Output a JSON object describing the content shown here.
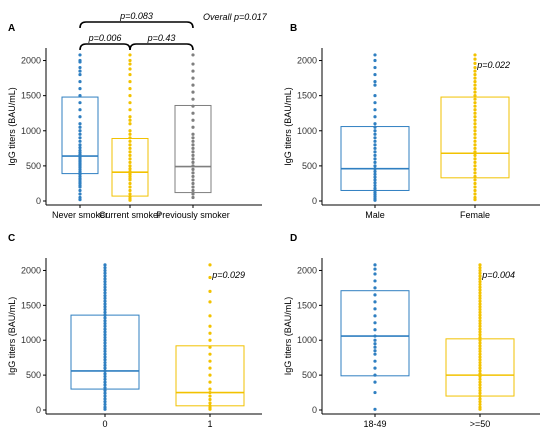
{
  "colors": {
    "blue": "#2f7fc1",
    "yellow": "#f2c200",
    "gray": "#7f7f7f",
    "axis": "#000000"
  },
  "chart_data": [
    {
      "panel": "A",
      "type": "box",
      "ylabel": "IgG titers (BAU/mL)",
      "ylim": [
        0,
        2150
      ],
      "yticks": [
        0,
        500,
        1000,
        1500,
        2000
      ],
      "grid": false,
      "overall_p": "Overall p=0.017",
      "categories": [
        "Never smoker",
        "Current smoker",
        "Previously smoker"
      ],
      "box_colors": [
        "blue",
        "yellow",
        "gray"
      ],
      "boxes": [
        {
          "q1": 390,
          "median": 640,
          "q3": 1480
        },
        {
          "q1": 70,
          "median": 410,
          "q3": 890
        },
        {
          "q1": 120,
          "median": 490,
          "q3": 1360
        }
      ],
      "points": [
        [
          2080,
          2000,
          1980,
          1900,
          1850,
          1800,
          1700,
          1600,
          1500,
          1400,
          1300,
          1200,
          1100,
          1050,
          1000,
          950,
          900,
          850,
          800,
          760,
          720,
          690,
          660,
          640,
          620,
          600,
          580,
          560,
          540,
          520,
          500,
          480,
          450,
          420,
          400,
          380,
          350,
          320,
          300,
          270,
          250,
          220,
          200,
          150,
          100,
          50,
          20
        ],
        [
          2080,
          2000,
          1950,
          1880,
          1800,
          1700,
          1600,
          1500,
          1400,
          1300,
          1200,
          1150,
          1100,
          1000,
          950,
          900,
          850,
          800,
          750,
          700,
          650,
          600,
          550,
          500,
          460,
          420,
          400,
          380,
          350,
          320,
          300,
          250,
          200,
          150,
          100,
          60,
          30,
          10
        ],
        [
          2080,
          1950,
          1850,
          1750,
          1650,
          1550,
          1450,
          1350,
          1250,
          1150,
          1050,
          950,
          900,
          850,
          800,
          750,
          700,
          650,
          600,
          550,
          500,
          450,
          400,
          350,
          300,
          250,
          200,
          150,
          100,
          50
        ]
      ],
      "comparisons": [
        {
          "label": "p=0.006",
          "from": 0,
          "to": 1,
          "level": 1
        },
        {
          "label": "p=0.43",
          "from": 1,
          "to": 2,
          "level": 1
        },
        {
          "label": "p=0.083",
          "from": 0,
          "to": 2,
          "level": 2
        }
      ]
    },
    {
      "panel": "B",
      "type": "box",
      "ylabel": "IgG titers (BAU/mL)",
      "ylim": [
        0,
        2150
      ],
      "yticks": [
        0,
        500,
        1000,
        1500,
        2000
      ],
      "grid": false,
      "p_value": "p=0.022",
      "categories": [
        "Male",
        "Female"
      ],
      "box_colors": [
        "blue",
        "yellow"
      ],
      "boxes": [
        {
          "q1": 150,
          "median": 460,
          "q3": 1060
        },
        {
          "q1": 330,
          "median": 680,
          "q3": 1480
        }
      ],
      "points": [
        [
          2080,
          2000,
          1900,
          1800,
          1700,
          1650,
          1500,
          1400,
          1300,
          1200,
          1100,
          1050,
          1000,
          950,
          900,
          850,
          800,
          750,
          700,
          650,
          600,
          550,
          500,
          460,
          420,
          380,
          340,
          300,
          260,
          220,
          180,
          150,
          120,
          90,
          60,
          30,
          10
        ],
        [
          2080,
          2020,
          1960,
          1900,
          1850,
          1800,
          1750,
          1700,
          1650,
          1600,
          1550,
          1500,
          1450,
          1400,
          1350,
          1300,
          1250,
          1200,
          1150,
          1100,
          1050,
          1000,
          950,
          900,
          850,
          800,
          750,
          700,
          650,
          600,
          550,
          500,
          450,
          400,
          350,
          300,
          250,
          200,
          150,
          100,
          50,
          20
        ]
      ]
    },
    {
      "panel": "C",
      "type": "box",
      "ylabel": "IgG titers (BAU/mL)",
      "ylim": [
        0,
        2150
      ],
      "yticks": [
        0,
        500,
        1000,
        1500,
        2000
      ],
      "grid": false,
      "p_value": "p=0.029",
      "categories": [
        "0",
        "1"
      ],
      "box_colors": [
        "blue",
        "yellow"
      ],
      "boxes": [
        {
          "q1": 300,
          "median": 560,
          "q3": 1360
        },
        {
          "q1": 60,
          "median": 250,
          "q3": 920
        }
      ],
      "points": [
        [
          2080,
          2040,
          2000,
          1960,
          1920,
          1880,
          1840,
          1800,
          1760,
          1720,
          1680,
          1640,
          1600,
          1560,
          1520,
          1480,
          1440,
          1400,
          1360,
          1320,
          1280,
          1240,
          1200,
          1160,
          1120,
          1080,
          1040,
          1000,
          960,
          920,
          880,
          840,
          800,
          760,
          720,
          680,
          640,
          600,
          560,
          520,
          480,
          440,
          400,
          360,
          320,
          280,
          240,
          200,
          160,
          120,
          80,
          40,
          10
        ],
        [
          2080,
          1900,
          1700,
          1550,
          1350,
          1200,
          1100,
          1000,
          900,
          800,
          700,
          600,
          500,
          400,
          300,
          250,
          200,
          150,
          100,
          60,
          30,
          10
        ]
      ]
    },
    {
      "panel": "D",
      "type": "box",
      "ylabel": "IgG titers (BAU/mL)",
      "ylim": [
        0,
        2150
      ],
      "yticks": [
        0,
        500,
        1000,
        1500,
        2000
      ],
      "grid": false,
      "p_value": "p=0.004",
      "categories": [
        "18-49",
        ">=50"
      ],
      "box_colors": [
        "blue",
        "yellow"
      ],
      "boxes": [
        {
          "q1": 490,
          "median": 1060,
          "q3": 1710
        },
        {
          "q1": 200,
          "median": 500,
          "q3": 1020
        }
      ],
      "points": [
        [
          2080,
          2020,
          1950,
          1850,
          1750,
          1650,
          1550,
          1450,
          1350,
          1250,
          1150,
          1060,
          1000,
          950,
          900,
          850,
          800,
          700,
          600,
          500,
          400,
          250,
          10
        ],
        [
          2080,
          2040,
          2000,
          1960,
          1920,
          1880,
          1840,
          1800,
          1760,
          1720,
          1680,
          1640,
          1600,
          1560,
          1520,
          1480,
          1440,
          1400,
          1360,
          1320,
          1280,
          1240,
          1200,
          1160,
          1120,
          1080,
          1040,
          1000,
          960,
          920,
          880,
          840,
          800,
          760,
          720,
          680,
          640,
          600,
          560,
          520,
          480,
          440,
          400,
          360,
          320,
          280,
          240,
          200,
          160,
          120,
          80,
          40,
          10
        ]
      ]
    }
  ]
}
